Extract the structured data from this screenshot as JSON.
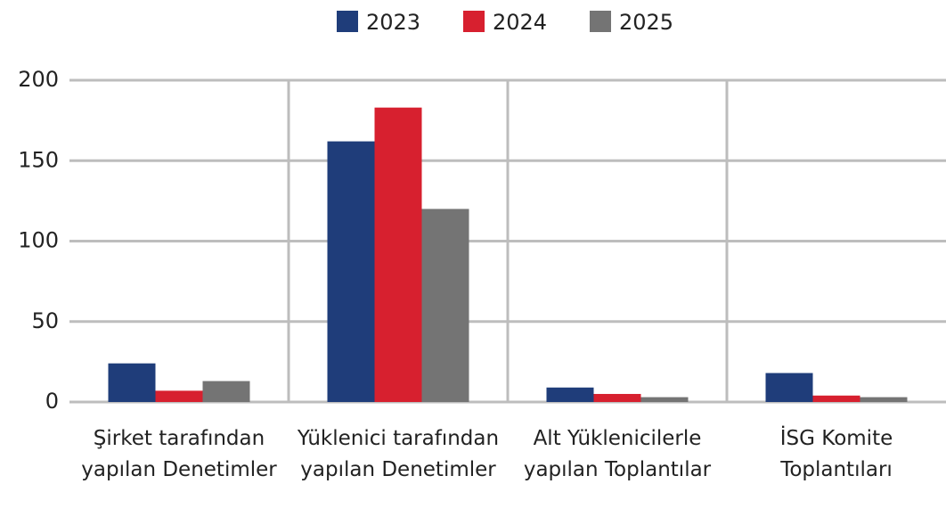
{
  "chart_data": {
    "type": "bar",
    "categories": [
      "Şirket tarafından yapılan Denetimler",
      "Yüklenici tarafından yapılan Denetimler",
      "Alt Yüklenicilerle yapılan Toplantılar",
      "İSG Komite Toplantıları"
    ],
    "series": [
      {
        "name": "2023",
        "color": "#1f3d7a",
        "values": [
          24,
          162,
          9,
          18
        ]
      },
      {
        "name": "2024",
        "color": "#d7202f",
        "values": [
          7,
          183,
          5,
          4
        ]
      },
      {
        "name": "2025",
        "color": "#747474",
        "values": [
          13,
          120,
          3,
          3
        ]
      }
    ],
    "ylim": [
      0,
      200
    ],
    "yticks": [
      0,
      50,
      100,
      150,
      200
    ],
    "grid": true,
    "legend": "top"
  }
}
